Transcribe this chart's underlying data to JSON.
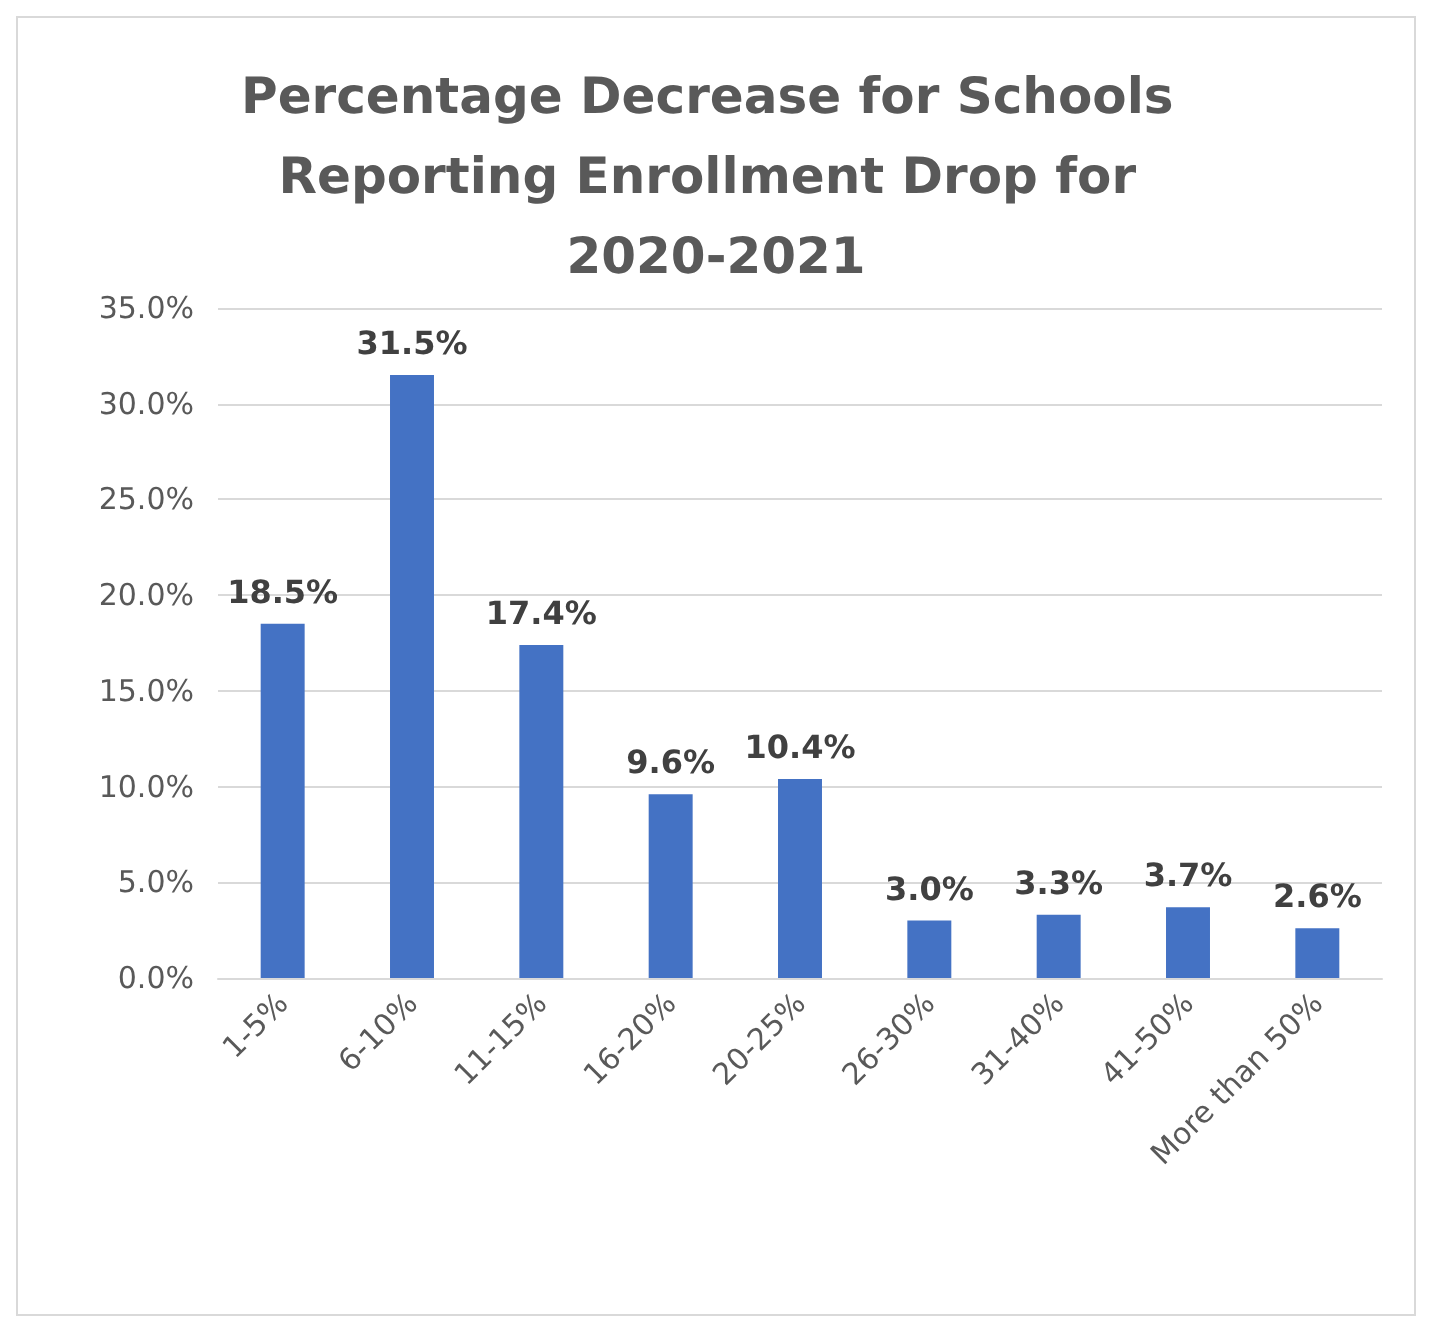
{
  "chart_data": {
    "type": "bar",
    "title": "Percentage Decrease for Schools Reporting Enrollment Drop for 2020-2021",
    "categories": [
      "1-5%",
      "6-10%",
      "11-15%",
      "16-20%",
      "20-25%",
      "26-30%",
      "31-40%",
      "41-50%",
      "More than 50%"
    ],
    "values": [
      18.5,
      31.5,
      17.4,
      9.6,
      10.4,
      3.0,
      3.3,
      3.7,
      2.6
    ],
    "value_labels": [
      "18.5%",
      "31.5%",
      "17.4%",
      "9.6%",
      "10.4%",
      "3.0%",
      "3.3%",
      "3.7%",
      "2.6%"
    ],
    "color": "#4472c4",
    "ylim": [
      0,
      35
    ],
    "yticks": [
      {
        "value": 0,
        "label": "0.0%"
      },
      {
        "value": 5,
        "label": "5.0%"
      },
      {
        "value": 10,
        "label": "10.0%"
      },
      {
        "value": 15,
        "label": "15.0%"
      },
      {
        "value": 20,
        "label": "20.0%"
      },
      {
        "value": 25,
        "label": "25.0%"
      },
      {
        "value": 30,
        "label": "30.0%"
      },
      {
        "value": 35,
        "label": "35.0%"
      }
    ],
    "grid": "y"
  }
}
